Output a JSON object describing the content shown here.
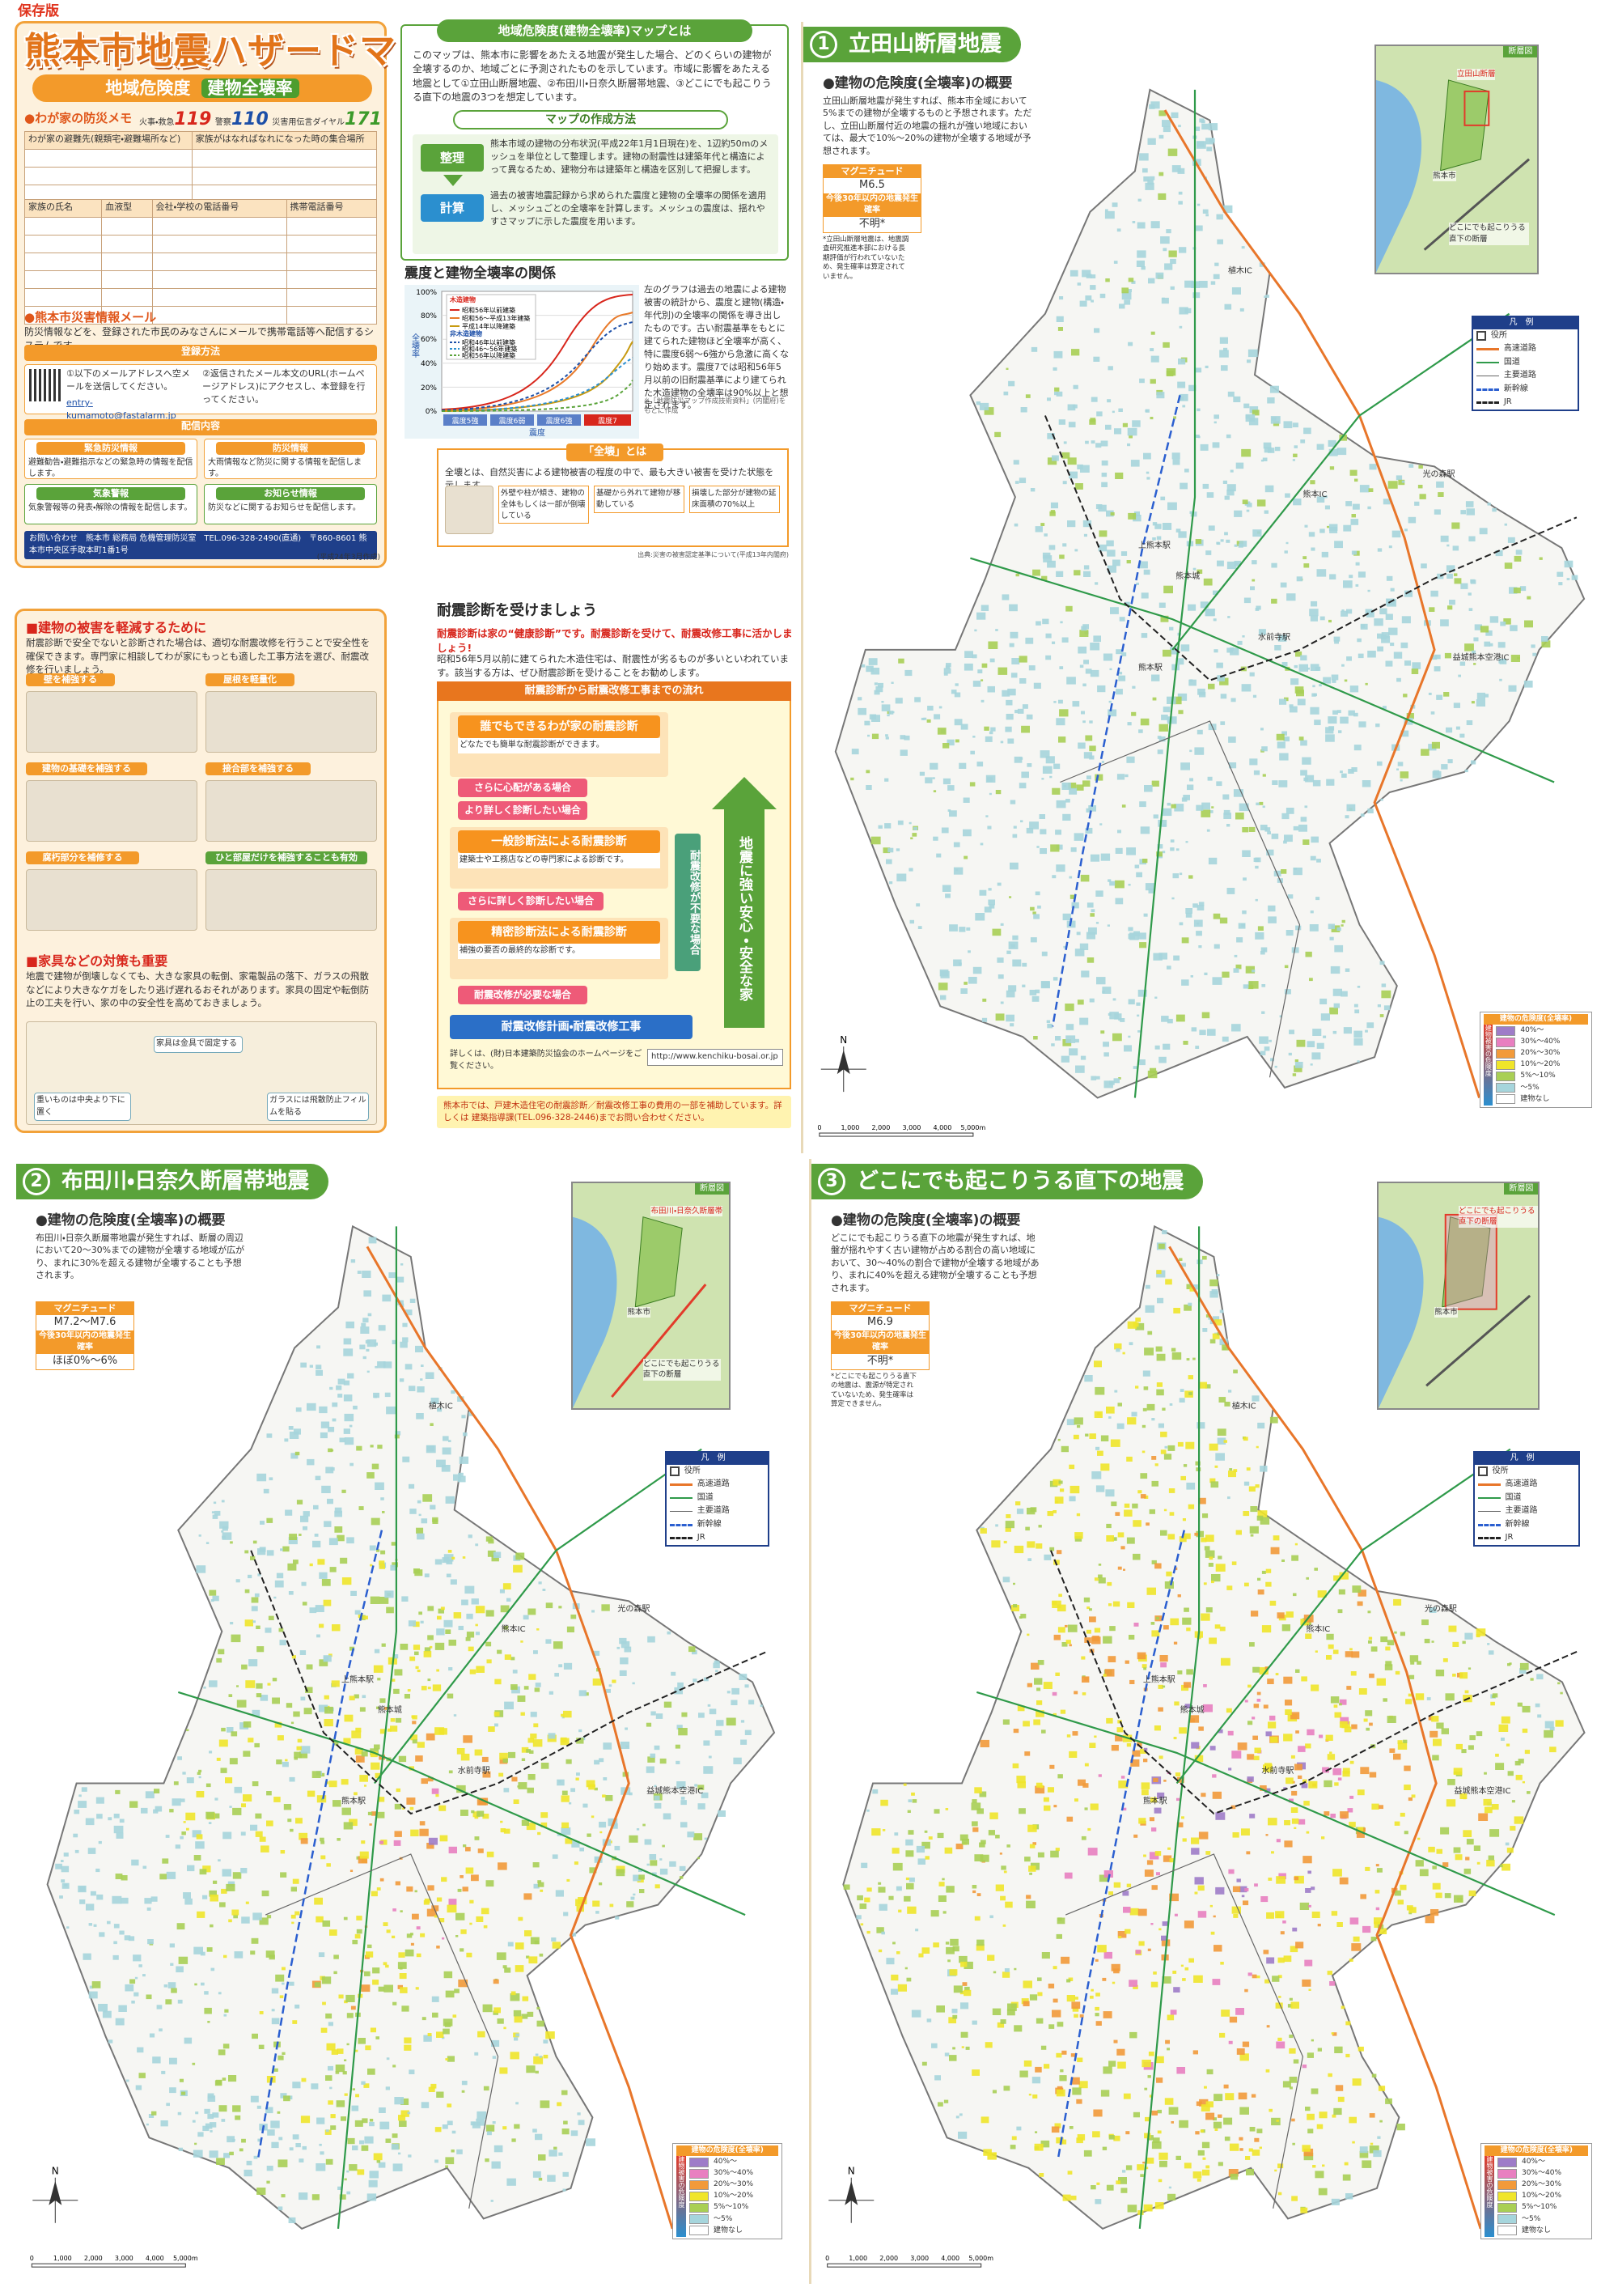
{
  "header": {
    "label": "保存版",
    "title": "熊本市地震ハザードマップ",
    "subtitle": "地域危険度",
    "subtitle_badge": "建物全壊率"
  },
  "memo": {
    "title": "●わが家の防災メモ",
    "numbers": [
      {
        "label": "火事・救急",
        "number": "119"
      },
      {
        "label": "警察",
        "number": "110"
      },
      {
        "label": "災害用伝言ダイヤル",
        "number": "171"
      }
    ],
    "table1_headers": [
      "わが家の避難先(親類宅・避難場所など)",
      "家族がはなればなれになった時の集合場所"
    ],
    "table2_headers": [
      "家族の氏名",
      "血液型",
      "会社・学校の電話番号",
      "携帯電話番号"
    ]
  },
  "mail": {
    "title": "●熊本市災害情報メール",
    "text": "防災情報などを、登録された市民のみなさんにメールで携帯電話等へ配信するシステムです。",
    "register_title": "登録方法",
    "steps": [
      "①以下のメールアドレスへ空メールを送信してください。",
      "②返信されたメール本文のURL(ホームページアドレス)にアクセスし、本登録を行ってください。"
    ],
    "address": "entry-kumamoto@fastalarm.jp",
    "delivery_title": "配信内容",
    "delivery": [
      {
        "title": "緊急防災情報",
        "text": "避難勧告・避難指示などの緊急時の情報を配信します。"
      },
      {
        "title": "防災情報",
        "text": "大雨情報など防災に関する情報を配信します。"
      },
      {
        "title": "気象警報",
        "text": "気象警報等の発表・解除の情報を配信します。"
      },
      {
        "title": "お知らせ情報",
        "text": "防災などに関するお知らせを配信します。"
      }
    ],
    "contact": "お問い合わせ　熊本市 総務局 危機管理防災室　TEL.096-328-2490(直通)　〒860-8601 熊本市中央区手取本町1番1号",
    "date": "(平成24年3月作成)"
  },
  "reduce": {
    "title": "■建物の被害を軽減するために",
    "text": "耐震診断で安全でないと診断された場合は、適切な耐震改修を行うことで安全性を確保できます。専門家に相談してわが家にもっとも適した工事方法を選び、耐震改修を行いましょう。",
    "items": [
      "壁を補強する",
      "屋根を軽量化",
      "建物の基礎を補強する",
      "接合部を補強する",
      "腐朽部分を補修する",
      "ひと部屋だけを補強することも有効"
    ]
  },
  "furniture": {
    "title": "■家具などの対策も重要",
    "text": "地震で建物が倒壊しなくても、大きな家具の転倒、家電製品の落下、ガラスの飛散などにより大きなケガをしたり逃げ遅れるおそれがあります。家具の固定や転倒防止の工夫を行い、家の中の安全性を高めておきましょう。",
    "captions": [
      "重いものは中央より下に置く",
      "家具は金具で固定する",
      "ガラスには飛散防止フィルムを貼る"
    ]
  },
  "about": {
    "title": "地域危険度(建物全壊率)マップとは",
    "text": "このマップは、熊本市に影響をあたえる地震が発生した場合、どのくらいの建物が全壊するのか、地域ごとに予測されたものを示しています。市域に影響をあたえる地震として①立田山断層地震、②布田川・日奈久断層帯地震、③どこにでも起こりうる直下の地震の3つを想定しています。",
    "method_title": "マップの作成方法",
    "steps": [
      {
        "label": "整理",
        "text": "熊本市域の建物の分布状況(平成22年1月1日現在)を、1辺約50mのメッシュを単位として整理します。建物の耐震性は建築年代と構造によって異なるため、建物分布は建築年と構造を区別して把握します。"
      },
      {
        "label": "計算",
        "text": "過去の被害地震記録から求められた震度と建物の全壊率の関係を適用し、メッシュごとの全壊率を計算します。メッシュの震度は、揺れやすさマップに示した震度を用います。"
      }
    ]
  },
  "relation": {
    "title": "震度と建物全壊率の関係",
    "y_label": "全壊率",
    "yticks": [
      "0%",
      "20%",
      "40%",
      "60%",
      "80%",
      "100%"
    ],
    "xticks": [
      "震度5強",
      "震度6弱",
      "震度6強",
      "震度7"
    ],
    "x_label": "震度",
    "legend_groups": [
      {
        "title": "木造建物",
        "items": [
          "昭和56年以前建築",
          "昭和56～平成13年建築",
          "平成14年以降建築"
        ]
      },
      {
        "title": "非木造建物",
        "items": [
          "昭和46年以前建築",
          "昭和46～56年建築",
          "昭和56年以降建築"
        ]
      }
    ],
    "text": "左のグラフは過去の地震による建物被害の統計から、震度と建物(構造・年代別)の全壊率の関係を導き出したものです。古い耐震基準をもとに建てられた建物ほど全壊率が高く、特に震度6弱～6強から急激に高くなり始めます。震度7では昭和56年5月以前の旧耐震基準により建てられた木造建物の全壊率は90%以上と想定されます。",
    "note": "※「地震防災マップ作成技術資料」(内閣府)をもとに作成"
  },
  "collapse": {
    "title": "「全壊」とは",
    "text": "全壊とは、自然災害による建物被害の程度の中で、最も大きい被害を受けた状態を示します。",
    "cases": [
      "外壁や柱が傾き、建物の全体もしくは一部が倒壊している",
      "基礎から外れて建物が移動している",
      "損壊した部分が建物の延床面積の70%以上"
    ],
    "source": "出典:災害の被害認定基準について(平成13年内閣府)"
  },
  "diagnosis": {
    "title": "耐震診断を受けましょう",
    "lead": "耐震診断は家の“健康診断”です。耐震診断を受けて、耐震改修工事に活かしましょう!",
    "text": "昭和56年5月以前に建てられた木造住宅は、耐震性が劣るものが多いといわれています。該当する方は、ぜひ耐震診断を受けることをお勧めします。",
    "flow_title": "耐震診断から耐震改修工事までの流れ",
    "flow": [
      "誰でもできるわが家の耐震診断",
      "さらに心配がある場合",
      "より詳しく診断したい場合",
      "一般診断法による耐震診断",
      "さらに詳しく診断したい場合",
      "精密診断法による耐震診断",
      "耐震改修が必要な場合",
      "耐震改修計画・耐震改修工事"
    ],
    "flow_notes": [
      "どなたでも簡単な耐震診断ができます。",
      "建築士や工務店などの専門家による診断です。",
      "補強の要否の最終的な診断です。"
    ],
    "side": "耐震改修が不要な場合",
    "goal": "地震に強い安心・安全な家",
    "link_text": "詳しくは、(財)日本建築防災協会のホームページをご覧ください。",
    "url": "http://www.kenchiku-bosai.or.jp",
    "subsidy": "熊本市では、戸建木造住宅の耐震診断／耐震改修工事の費用の一部を補助しています。詳しくは 建築指導課(TEL.096-328-2446)までお問い合わせください。"
  },
  "maps": [
    {
      "number": "1",
      "title": "立田山断層地震",
      "heading": "●建物の危険度(全壊率)の概要",
      "description": "立田山断層地震が発生すれば、熊本市全域において5%までの建物が全壊するものと予想されます。ただし、立田山断層付近の地震の揺れが強い地域においては、最大で10%～20%の建物が全壊する地域が予想されます。",
      "magnitude_label": "マグニチュード",
      "magnitude": "M6.5",
      "probability_label": "今後30年以内の地震発生確率",
      "probability": "不明*",
      "note": "*立田山断層地震は、地震調査研究推進本部における長期評価が行われていないため、発生確率は算定されていません。",
      "inset_title": "断層図",
      "inset_labels": [
        "立田山断層",
        "熊本市",
        "どこにでも起こりうる直下の断層"
      ]
    },
    {
      "number": "2",
      "title": "布田川・日奈久断層帯地震",
      "heading": "●建物の危険度(全壊率)の概要",
      "description": "布田川・日奈久断層帯地震が発生すれば、断層の周辺において20～30%までの建物が全壊する地域が広がり、まれに30%を超える建物が全壊することも予想されます。",
      "magnitude_label": "マグニチュード",
      "magnitude": "M7.2～M7.6",
      "probability_label": "今後30年以内の地震発生確率",
      "probability": "ほぼ0%～6%",
      "inset_title": "断層図",
      "inset_labels": [
        "布田川・日奈久断層帯",
        "熊本市",
        "どこにでも起こりうる直下の断層"
      ]
    },
    {
      "number": "3",
      "title": "どこにでも起こりうる直下の地震",
      "heading": "●建物の危険度(全壊率)の概要",
      "description": "どこにでも起こりうる直下の地震が発生すれば、地盤が揺れやすく古い建物が占める割合の高い地域において、30～40%の割合で建物が全壊する地域があり、まれに40%を超える建物が全壊することも予想されます。",
      "magnitude_label": "マグニチュード",
      "magnitude": "M6.9",
      "probability_label": "今後30年以内の地震発生確率",
      "probability": "不明*",
      "note": "*どこにでも起こりうる直下の地震は、震源が特定されていないため、発生確率は算定できません。",
      "inset_title": "断層図",
      "inset_labels": [
        "どこにでも起こりうる直下の断層",
        "熊本市"
      ]
    }
  ],
  "map_common": {
    "legend_title": "凡例",
    "legend": [
      "役所",
      "高速道路",
      "国道",
      "主要道路",
      "新幹線",
      "JR"
    ],
    "danger_title": "建物の危険度(全壊率)",
    "danger_axis": "建物被害の危険度",
    "levels": [
      {
        "label": "40%～",
        "color": "#9e7cc8"
      },
      {
        "label": "30%～40%",
        "color": "#e87fc0"
      },
      {
        "label": "20%～30%",
        "color": "#f29a3a"
      },
      {
        "label": "10%～20%",
        "color": "#f0e52a"
      },
      {
        "label": "5%～10%",
        "color": "#a9cf55"
      },
      {
        "label": "～5%",
        "color": "#a6d5dc"
      },
      {
        "label": "建物なし",
        "color": "#ffffff"
      }
    ],
    "places": [
      "植木IC",
      "熊本IC",
      "益城熊本空港IC",
      "光の森駅",
      "熊本駅",
      "水前寺駅",
      "熊本城",
      "上熊本駅"
    ],
    "scale": [
      "0",
      "1,000",
      "2,000",
      "3,000",
      "4,000",
      "5,000m"
    ],
    "north": "N"
  }
}
